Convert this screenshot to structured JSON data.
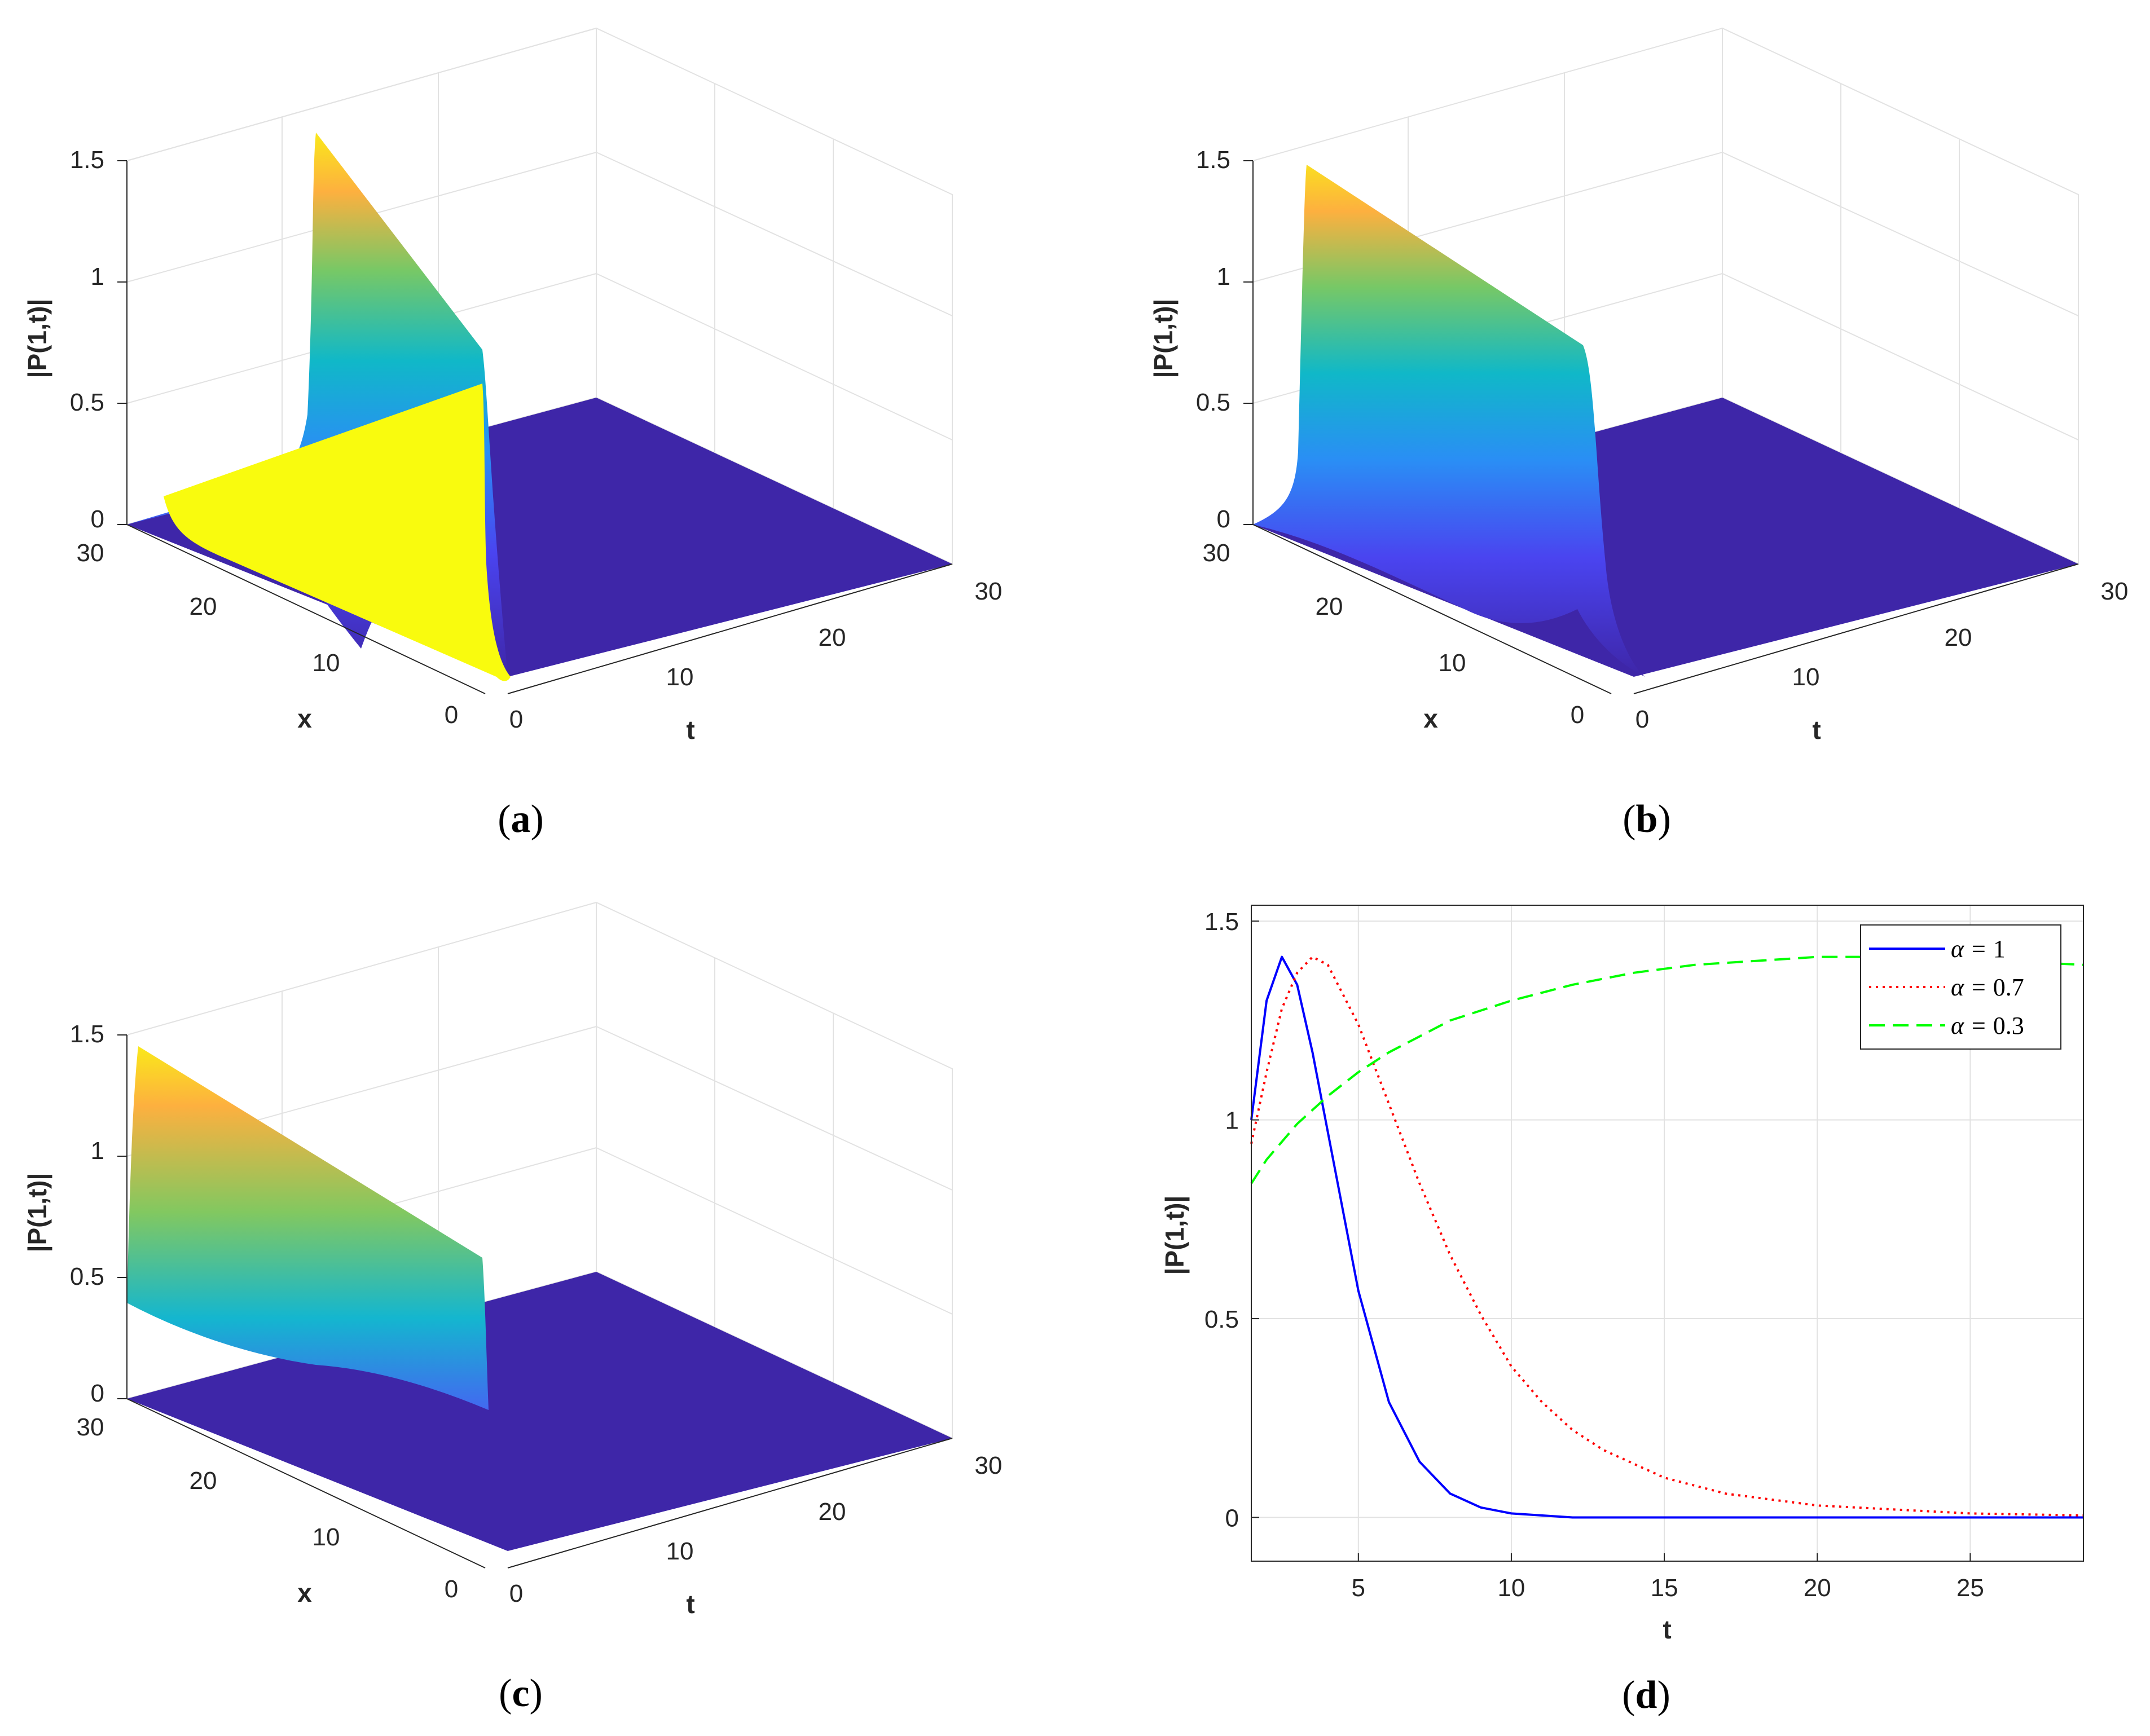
{
  "figure_panels": [
    {
      "id": "a",
      "caption": "(a)",
      "caption_letter": "a",
      "type": "surface",
      "alpha": 1,
      "zlabel": "|P(1,t)|",
      "xlabel": "x",
      "tlabel": "t",
      "x_ticks": [
        "0",
        "10",
        "20",
        "30"
      ],
      "t_ticks": [
        "0",
        "10",
        "20",
        "30"
      ],
      "z_ticks": [
        "0",
        "0.5",
        "1",
        "1.5"
      ]
    },
    {
      "id": "b",
      "caption": "(b)",
      "caption_letter": "b",
      "type": "surface",
      "alpha": 0.7,
      "zlabel": "|P(1,t)|",
      "xlabel": "x",
      "tlabel": "t",
      "x_ticks": [
        "0",
        "10",
        "20",
        "30"
      ],
      "t_ticks": [
        "0",
        "10",
        "20",
        "30"
      ],
      "z_ticks": [
        "0",
        "0.5",
        "1",
        "1.5"
      ]
    },
    {
      "id": "c",
      "caption": "(c)",
      "caption_letter": "c",
      "type": "surface",
      "alpha": 0.3,
      "zlabel": "|P(1,t)|",
      "xlabel": "x",
      "tlabel": "t",
      "x_ticks": [
        "0",
        "10",
        "20",
        "30"
      ],
      "t_ticks": [
        "0",
        "10",
        "20",
        "30"
      ],
      "z_ticks": [
        "0",
        "0.5",
        "1",
        "1.5"
      ]
    }
  ],
  "chart_data": [
    {
      "panel": "a",
      "type": "surface",
      "xlabel": "x",
      "ylabel": "t",
      "zlabel": "|P(1,t)|",
      "xlim": [
        0,
        30
      ],
      "ylim": [
        0,
        30
      ],
      "zlim": [
        0,
        1.5
      ],
      "ridge_peak_t": 2.5,
      "ridge_peak_value": 1.41,
      "ridge_value_at_x0": 1.41,
      "ridge_value_at_x30": 0.75
    },
    {
      "panel": "b",
      "type": "surface",
      "xlabel": "x",
      "ylabel": "t",
      "zlabel": "|P(1,t)|",
      "xlim": [
        0,
        30
      ],
      "ylim": [
        0,
        30
      ],
      "zlim": [
        0,
        1.5
      ],
      "ridge_peak_t": 3.7,
      "ridge_peak_value": 1.41,
      "ridge_value_at_x0": 1.41,
      "ridge_value_at_x30": 0.75
    },
    {
      "panel": "c",
      "type": "surface",
      "xlabel": "x",
      "ylabel": "t",
      "zlabel": "|P(1,t)|",
      "xlim": [
        0,
        30
      ],
      "ylim": [
        0,
        30
      ],
      "zlim": [
        0,
        1.5
      ],
      "ridge_peak_t": 20,
      "ridge_peak_value": 1.41,
      "ridge_value_at_x0": 1.41,
      "ridge_value_at_x30": 0.75
    },
    {
      "panel": "d",
      "caption": "(d)",
      "caption_letter": "d",
      "type": "line",
      "xlabel": "t",
      "ylabel": "|P(1,t)|",
      "xlim": [
        1.5,
        28.7
      ],
      "ylim": [
        -0.11,
        1.54
      ],
      "xticks": [
        5,
        10,
        15,
        20,
        25
      ],
      "yticks": [
        0,
        0.5,
        1,
        1.5
      ],
      "ytick_labels": [
        "0",
        "0.5",
        "1",
        "1.5"
      ],
      "grid": true,
      "legend_position": "top-right",
      "series": [
        {
          "name": "α = 1",
          "alpha_value": "1",
          "color": "#0000ff",
          "style": "solid",
          "x": [
            1.5,
            2,
            2.5,
            3,
            3.5,
            4,
            5,
            6,
            7,
            8,
            9,
            10,
            12,
            15,
            20,
            25,
            28.7
          ],
          "y": [
            1.0,
            1.3,
            1.41,
            1.34,
            1.17,
            0.97,
            0.57,
            0.29,
            0.14,
            0.06,
            0.025,
            0.01,
            0.0,
            0.0,
            0.0,
            0.0,
            0.0
          ]
        },
        {
          "name": "α = 0.7",
          "alpha_value": "0.7",
          "color": "#ff0000",
          "style": "dotted",
          "x": [
            1.5,
            2,
            2.5,
            3,
            3.5,
            4,
            5,
            6,
            7,
            8,
            9,
            10,
            11,
            12,
            13,
            15,
            17,
            20,
            25,
            28.7
          ],
          "y": [
            0.94,
            1.12,
            1.28,
            1.37,
            1.41,
            1.39,
            1.24,
            1.04,
            0.84,
            0.66,
            0.51,
            0.38,
            0.29,
            0.22,
            0.17,
            0.1,
            0.06,
            0.03,
            0.01,
            0.005
          ]
        },
        {
          "name": "α = 0.3",
          "alpha_value": "0.3",
          "color": "#00ff00",
          "style": "dashed",
          "x": [
            1.5,
            2,
            3,
            4,
            5,
            6,
            7,
            8,
            10,
            12,
            14,
            16,
            18,
            20,
            22,
            24,
            26,
            28.7
          ],
          "y": [
            0.84,
            0.9,
            0.99,
            1.06,
            1.12,
            1.17,
            1.21,
            1.25,
            1.3,
            1.34,
            1.37,
            1.39,
            1.4,
            1.41,
            1.41,
            1.41,
            1.4,
            1.39
          ]
        }
      ]
    }
  ],
  "colors": {
    "surface_base": "#3e26a8",
    "grid": "#e2e2e2",
    "axis": "#262626"
  }
}
